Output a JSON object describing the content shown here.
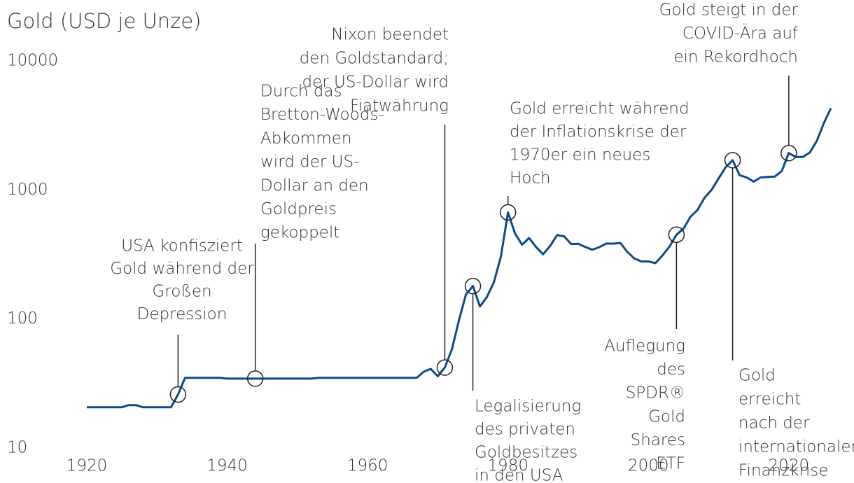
{
  "chart_data": {
    "type": "line",
    "title": "Gold (USD je Unze)",
    "log_scale": true,
    "grid": false,
    "x": [
      1920,
      1921,
      1922,
      1923,
      1924,
      1925,
      1926,
      1927,
      1928,
      1929,
      1930,
      1931,
      1932,
      1933,
      1934,
      1935,
      1936,
      1937,
      1938,
      1939,
      1940,
      1941,
      1942,
      1943,
      1944,
      1945,
      1946,
      1947,
      1948,
      1949,
      1950,
      1951,
      1952,
      1953,
      1954,
      1955,
      1956,
      1957,
      1958,
      1959,
      1960,
      1961,
      1962,
      1963,
      1964,
      1965,
      1966,
      1967,
      1968,
      1969,
      1970,
      1971,
      1972,
      1973,
      1974,
      1975,
      1976,
      1977,
      1978,
      1979,
      1980,
      1981,
      1982,
      1983,
      1984,
      1985,
      1986,
      1987,
      1988,
      1989,
      1990,
      1991,
      1992,
      1993,
      1994,
      1995,
      1996,
      1997,
      1998,
      1999,
      2000,
      2001,
      2002,
      2003,
      2004,
      2005,
      2006,
      2007,
      2008,
      2009,
      2010,
      2011,
      2012,
      2013,
      2014,
      2015,
      2016,
      2017,
      2018,
      2019,
      2020,
      2021,
      2022,
      2023,
      2024,
      2025,
      2026
    ],
    "series": [
      {
        "name": "Gold",
        "color": "#0b4a8b",
        "values": [
          20.7,
          20.7,
          20.7,
          20.7,
          20.7,
          20.7,
          21.5,
          21.5,
          20.7,
          20.7,
          20.7,
          20.7,
          20.7,
          26,
          35,
          35,
          35,
          35,
          35,
          35,
          34.5,
          34.5,
          34.5,
          34.5,
          34.5,
          34.5,
          34.5,
          34.5,
          34.5,
          34.5,
          34.5,
          34.5,
          34.5,
          35,
          35,
          35,
          35,
          35,
          35,
          35,
          35,
          35,
          35,
          35,
          35,
          35,
          35,
          35,
          39,
          41,
          36,
          42,
          58,
          97,
          154,
          180,
          125,
          148,
          193,
          307,
          670,
          460,
          376,
          424,
          361,
          317,
          368,
          447,
          437,
          381,
          383,
          362,
          344,
          360,
          384,
          384,
          388,
          331,
          294,
          279,
          279,
          271,
          310,
          363,
          450,
          500,
          620,
          700,
          870,
          1000,
          1225,
          1500,
          1700,
          1300,
          1250,
          1160,
          1250,
          1260,
          1270,
          1400,
          1930,
          1800,
          1800,
          1950,
          2400,
          3300,
          4300
        ]
      }
    ],
    "xlim": [
      1920,
      2026
    ],
    "xticks": [
      1920,
      1940,
      1960,
      1980,
      2000,
      2020
    ],
    "ylim": [
      10,
      10000
    ],
    "yticks": [
      10,
      100,
      1000,
      10000
    ],
    "annotations": [
      {
        "x": 1933,
        "y": 26,
        "text": [
          "USA konfisziert",
          "Gold während der",
          "Großen",
          "Depression"
        ]
      },
      {
        "x": 1944,
        "y": 34.5,
        "text": [
          "Durch das",
          "Bretton-Woods-",
          "Abkommen",
          "wird der US-",
          "Dollar an den",
          "Goldpreis",
          "gekoppelt"
        ]
      },
      {
        "x": 1971,
        "y": 42,
        "text": [
          "Nixon beendet",
          "den Goldstandard;",
          "der US-Dollar wird",
          "Fiatwährung"
        ]
      },
      {
        "x": 1975,
        "y": 180,
        "text": [
          "Legalisierung",
          "des privaten",
          "Goldbesitzes",
          "in den USA"
        ]
      },
      {
        "x": 1980,
        "y": 670,
        "text": [
          "Gold erreicht während",
          "der Inflationskrise der",
          "1970er ein neues",
          "Hoch"
        ]
      },
      {
        "x": 2004,
        "y": 450,
        "text": [
          "Auflegung",
          "des",
          "SPDR®",
          "Gold",
          "Shares",
          "ETF"
        ]
      },
      {
        "x": 2012,
        "y": 1700,
        "text": [
          "Gold",
          "erreicht",
          "nach der",
          "internationalen",
          "Finanzkrise"
        ]
      },
      {
        "x": 2020,
        "y": 1930,
        "text": [
          "Gold steigt in der",
          "COVID-Ära auf",
          "ein Rekordhoch"
        ]
      }
    ]
  }
}
